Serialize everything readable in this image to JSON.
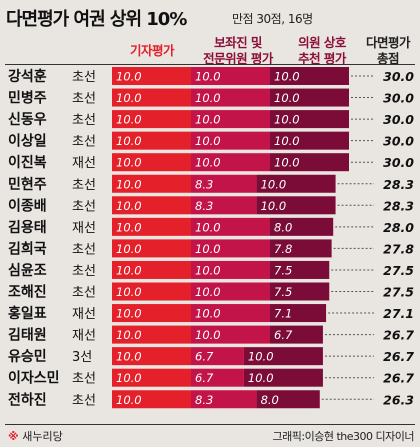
{
  "header": {
    "title": "다면평가 여권 상위 10%",
    "subtitle": "만점 30점, 16명"
  },
  "columns": {
    "reporter": "기자평가",
    "aide_line1": "보좌진 및",
    "aide_line2": "전문위원 평가",
    "peer_line1": "의원 상호",
    "peer_line2": "추천 평가",
    "total_line1": "다면평가",
    "total_line2": "총점"
  },
  "footer": {
    "mark": "※",
    "party": "새누리당",
    "credit": "그래픽:이승현 the300 디자이너"
  },
  "colors": {
    "reporter_bar": "#e4202a",
    "aide_bar": "#c3144a",
    "peer_bar": "#7a0c37",
    "background": "#e9e6e1"
  },
  "chart_data": {
    "type": "bar",
    "stacked": true,
    "orientation": "horizontal",
    "title": "다면평가 여권 상위 10%",
    "subtitle": "만점 30점, 16명",
    "categories": [
      "강석훈",
      "민병주",
      "신동우",
      "이상일",
      "이진복",
      "민현주",
      "이종배",
      "김용태",
      "김희국",
      "심윤조",
      "조해진",
      "홍일표",
      "김태원",
      "유승민",
      "이자스민",
      "전하진"
    ],
    "terms": [
      "초선",
      "초선",
      "초선",
      "초선",
      "재선",
      "초선",
      "초선",
      "재선",
      "초선",
      "초선",
      "초선",
      "재선",
      "재선",
      "3선",
      "초선",
      "초선"
    ],
    "series": [
      {
        "name": "기자평가",
        "values": [
          10.0,
          10.0,
          10.0,
          10.0,
          10.0,
          10.0,
          10.0,
          10.0,
          10.0,
          10.0,
          10.0,
          10.0,
          10.0,
          10.0,
          10.0,
          10.0
        ]
      },
      {
        "name": "보좌진 및 전문위원 평가",
        "values": [
          10.0,
          10.0,
          10.0,
          10.0,
          10.0,
          8.3,
          8.3,
          10.0,
          10.0,
          10.0,
          10.0,
          10.0,
          10.0,
          6.7,
          6.7,
          8.3
        ]
      },
      {
        "name": "의원 상호 추천 평가",
        "values": [
          10.0,
          10.0,
          10.0,
          10.0,
          10.0,
          10.0,
          10.0,
          8.0,
          7.8,
          7.5,
          7.5,
          7.1,
          6.7,
          10.0,
          10.0,
          8.0
        ]
      }
    ],
    "totals": [
      "30.0",
      "30.0",
      "30.0",
      "30.0",
      "30.0",
      "28.3",
      "28.3",
      "28.0",
      "27.8",
      "27.5",
      "27.5",
      "27.1",
      "26.7",
      "26.7",
      "26.7",
      "26.3"
    ],
    "xlim": [
      0,
      30
    ]
  }
}
